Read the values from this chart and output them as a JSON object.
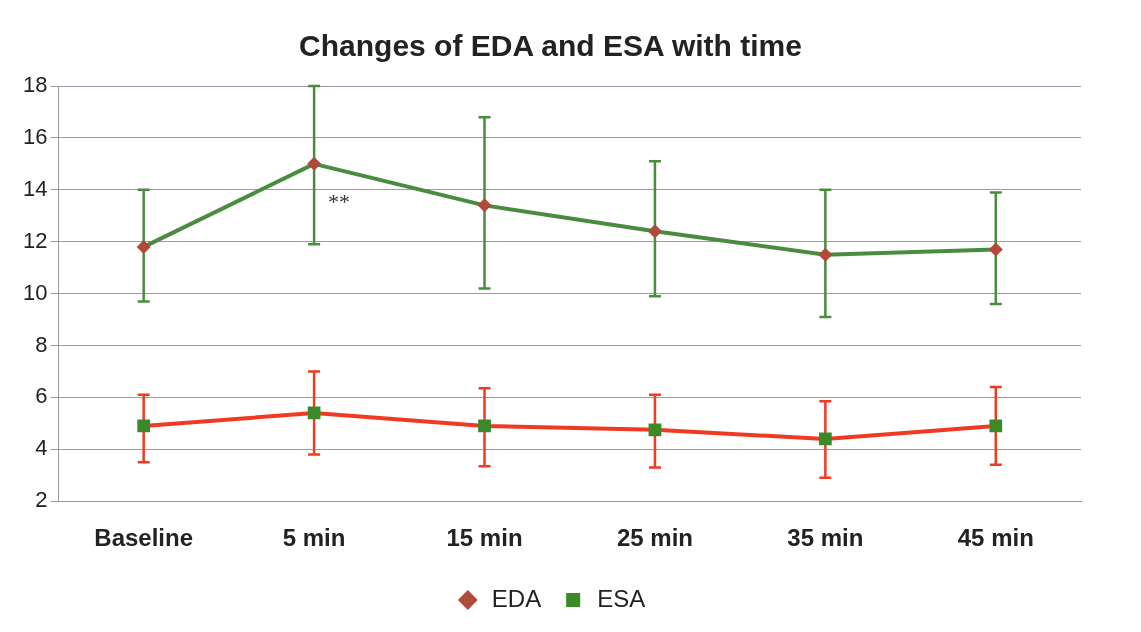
{
  "chart_data": {
    "type": "line",
    "title": "Changes of EDA and ESA with time",
    "categories": [
      "Baseline",
      "5 min",
      "15 min",
      "25 min",
      "35 min",
      "45 min"
    ],
    "series": [
      {
        "name": "EDA",
        "color": "#4a8c3f",
        "marker": "diamond",
        "values": [
          11.8,
          15.0,
          13.4,
          12.4,
          11.5,
          11.7
        ],
        "errors": [
          [
            9.7,
            14.0
          ],
          [
            11.9,
            18.0
          ],
          [
            10.2,
            16.8
          ],
          [
            9.9,
            15.1
          ],
          [
            9.1,
            14.0
          ],
          [
            9.6,
            13.9
          ]
        ]
      },
      {
        "name": "ESA",
        "color": "#f03a22",
        "marker": "square",
        "values": [
          4.9,
          5.4,
          4.9,
          4.75,
          4.4,
          4.9
        ],
        "errors": [
          [
            3.5,
            6.1
          ],
          [
            3.8,
            7.0
          ],
          [
            3.35,
            6.35
          ],
          [
            3.3,
            6.1
          ],
          [
            2.9,
            5.85
          ],
          [
            3.4,
            6.4
          ]
        ]
      }
    ],
    "ylim": [
      2,
      18
    ],
    "yticks": [
      2,
      4,
      6,
      8,
      10,
      12,
      14,
      16,
      18
    ],
    "grid": "y",
    "legend": "bottom",
    "annotations": [
      {
        "text": "**",
        "x": "5 min",
        "y": 13.5
      }
    ]
  }
}
